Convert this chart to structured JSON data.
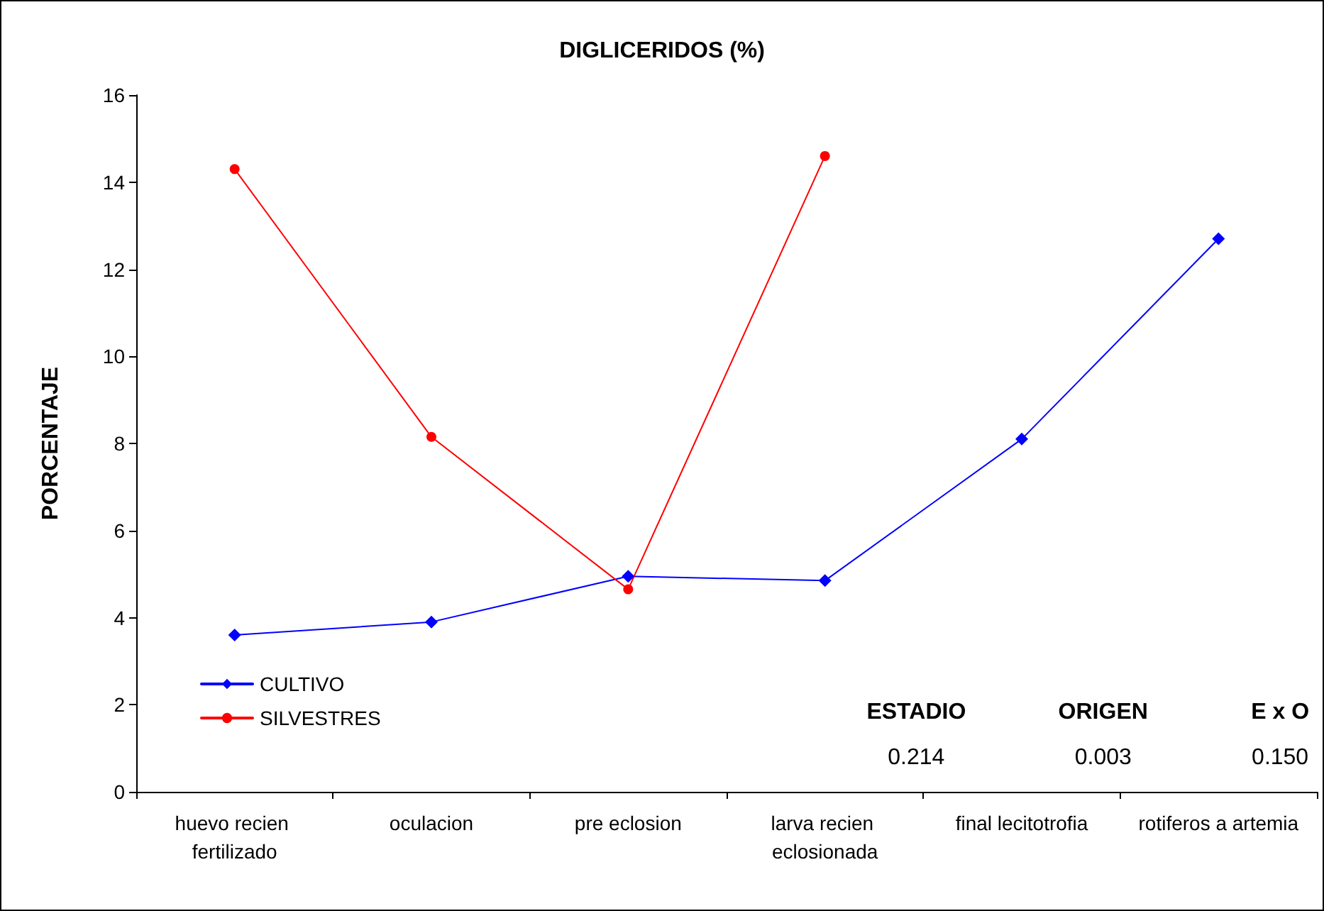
{
  "chart_data": {
    "type": "line",
    "title": "DIGLICERIDOS (%)",
    "ylabel": "PORCENTAJE",
    "categories": [
      "huevo recien fertilizado",
      "oculacion",
      "pre eclosion",
      "larva recien eclosionada",
      "final lecitotrofia",
      "rotiferos a artemia"
    ],
    "series": [
      {
        "name": "CULTIVO",
        "color": "#0000ff",
        "marker": "diamond",
        "values": [
          3.6,
          3.9,
          4.95,
          4.85,
          8.1,
          12.7
        ]
      },
      {
        "name": "SILVESTRES",
        "color": "#ff0000",
        "marker": "circle",
        "values": [
          14.3,
          8.15,
          4.65,
          14.6,
          null,
          null
        ]
      }
    ],
    "ylim": [
      0,
      16
    ],
    "yticks": [
      0,
      2,
      4,
      6,
      8,
      10,
      12,
      14,
      16
    ],
    "grid": false,
    "legend": "bottom left",
    "annotations": [
      "ESTADIO",
      "ORIGEN",
      "E x O",
      "0.214",
      "0.003",
      "0.150"
    ]
  }
}
